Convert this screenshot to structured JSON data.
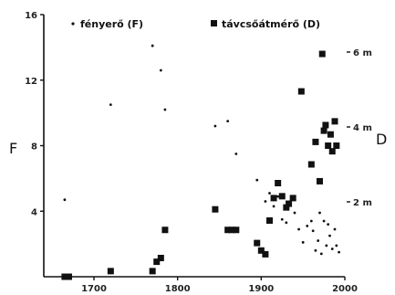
{
  "chart_data": {
    "type": "scatter",
    "xlim": [
      1640,
      2000
    ],
    "x_ticks": [
      1700,
      1800,
      1900,
      2000
    ],
    "left_axis": {
      "label": "F",
      "lim": [
        0,
        16
      ],
      "ticks": [
        4,
        8,
        12,
        16
      ]
    },
    "right_axis": {
      "label": "D",
      "lim": [
        0,
        7
      ],
      "ticks": [
        2,
        4,
        6
      ],
      "tick_labels": [
        "2 m",
        "4 m",
        "6 m"
      ]
    },
    "grid": false,
    "legend_position": "top",
    "series": [
      {
        "name": "fényerő (F)",
        "axis": "left",
        "marker": "small-dot",
        "points": [
          [
            1665,
            4.7
          ],
          [
            1720,
            10.5
          ],
          [
            1770,
            14.1
          ],
          [
            1780,
            12.6
          ],
          [
            1785,
            10.2
          ],
          [
            1845,
            9.2
          ],
          [
            1860,
            9.5
          ],
          [
            1870,
            7.5
          ],
          [
            1895,
            5.9
          ],
          [
            1905,
            4.6
          ],
          [
            1910,
            5.1
          ],
          [
            1915,
            4.3
          ],
          [
            1920,
            4.9
          ],
          [
            1925,
            3.5
          ],
          [
            1930,
            3.3
          ],
          [
            1935,
            4.6
          ],
          [
            1940,
            3.9
          ],
          [
            1945,
            2.9
          ],
          [
            1950,
            2.1
          ],
          [
            1955,
            3.1
          ],
          [
            1960,
            3.4
          ],
          [
            1962,
            2.8
          ],
          [
            1965,
            1.6
          ],
          [
            1968,
            2.2
          ],
          [
            1970,
            3.9
          ],
          [
            1972,
            1.4
          ],
          [
            1975,
            3.4
          ],
          [
            1978,
            1.9
          ],
          [
            1980,
            3.2
          ],
          [
            1982,
            2.5
          ],
          [
            1985,
            1.7
          ],
          [
            1988,
            2.9
          ],
          [
            1990,
            1.9
          ],
          [
            1993,
            1.5
          ]
        ]
      },
      {
        "name": "távcsőátmérő (D)",
        "axis": "right",
        "marker": "square",
        "points": [
          [
            1665,
            0.0
          ],
          [
            1670,
            0.0
          ],
          [
            1720,
            0.15
          ],
          [
            1770,
            0.15
          ],
          [
            1775,
            0.4
          ],
          [
            1780,
            0.5
          ],
          [
            1785,
            1.25
          ],
          [
            1845,
            1.8
          ],
          [
            1860,
            1.25
          ],
          [
            1865,
            1.25
          ],
          [
            1870,
            1.25
          ],
          [
            1895,
            0.9
          ],
          [
            1900,
            0.7
          ],
          [
            1905,
            0.6
          ],
          [
            1910,
            1.5
          ],
          [
            1915,
            2.1
          ],
          [
            1920,
            2.5
          ],
          [
            1925,
            2.15
          ],
          [
            1930,
            1.85
          ],
          [
            1933,
            1.95
          ],
          [
            1938,
            2.1
          ],
          [
            1948,
            4.95
          ],
          [
            1960,
            3.0
          ],
          [
            1965,
            3.6
          ],
          [
            1970,
            2.55
          ],
          [
            1973,
            5.95
          ],
          [
            1975,
            3.9
          ],
          [
            1977,
            4.05
          ],
          [
            1980,
            3.5
          ],
          [
            1983,
            3.8
          ],
          [
            1985,
            3.35
          ],
          [
            1988,
            4.15
          ],
          [
            1990,
            3.5
          ]
        ]
      }
    ]
  }
}
